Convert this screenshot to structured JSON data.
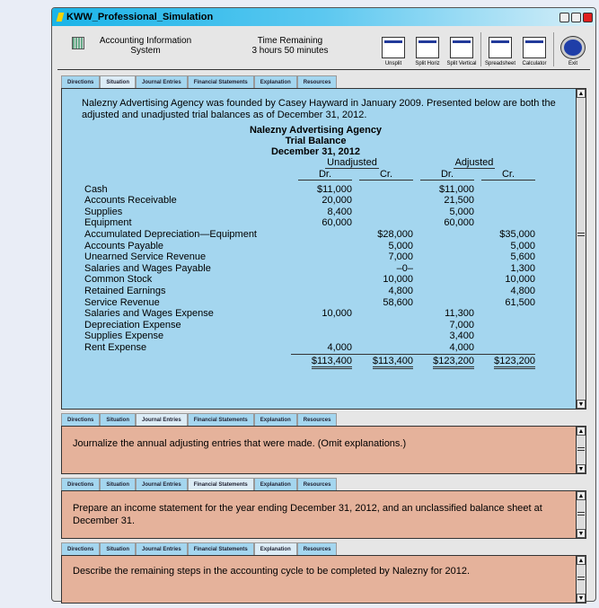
{
  "window": {
    "title": "KWW_Professional_Simulation"
  },
  "header": {
    "app_line1": "Accounting Information",
    "app_line2": "System",
    "time_label": "Time Remaining",
    "time_value": "3 hours 50 minutes"
  },
  "toolbar": [
    {
      "label": "Unsplit",
      "icon": "unsplit-icon"
    },
    {
      "label": "Split Horiz",
      "icon": "split-horizontal-icon"
    },
    {
      "label": "Split Vertical",
      "icon": "split-vertical-icon"
    },
    {
      "label": "Spreadsheet",
      "icon": "spreadsheet-icon"
    },
    {
      "label": "Calculator",
      "icon": "calculator-icon"
    },
    {
      "label": "Exit",
      "icon": "exit-arrow-icon"
    }
  ],
  "tabs": [
    "Directions",
    "Situation",
    "Journal Entries",
    "Financial Statements",
    "Explanation",
    "Resources"
  ],
  "panels": [
    {
      "active_tab": 1,
      "color": "#a4d6ef",
      "intro": "Nalezny Advertising Agency was founded by Casey Hayward in January 2009. Presented below are both the adjusted and unadjusted trial balances as of December 31, 2012.",
      "table": {
        "company": "Nalezny Advertising Agency",
        "title": "Trial Balance",
        "date": "December 31, 2012",
        "group1": "Unadjusted",
        "group2": "Adjusted",
        "dr": "Dr.",
        "cr": "Cr.",
        "rows": [
          [
            "Cash",
            "$11,000",
            "",
            "$11,000",
            ""
          ],
          [
            "Accounts Receivable",
            "20,000",
            "",
            "21,500",
            ""
          ],
          [
            "Supplies",
            "8,400",
            "",
            "5,000",
            ""
          ],
          [
            "Equipment",
            "60,000",
            "",
            "60,000",
            ""
          ],
          [
            "Accumulated Depreciation—Equipment",
            "",
            "$28,000",
            "",
            "$35,000"
          ],
          [
            "Accounts Payable",
            "",
            "5,000",
            "",
            "5,000"
          ],
          [
            "Unearned Service Revenue",
            "",
            "7,000",
            "",
            "5,600"
          ],
          [
            "Salaries and Wages Payable",
            "",
            "–0–",
            "",
            "1,300"
          ],
          [
            "Common Stock",
            "",
            "10,000",
            "",
            "10,000"
          ],
          [
            "Retained Earnings",
            "",
            "4,800",
            "",
            "4,800"
          ],
          [
            "Service Revenue",
            "",
            "58,600",
            "",
            "61,500"
          ],
          [
            "Salaries and Wages Expense",
            "10,000",
            "",
            "11,300",
            ""
          ],
          [
            "Depreciation Expense",
            "",
            "",
            "7,000",
            ""
          ],
          [
            "Supplies Expense",
            "",
            "",
            "3,400",
            ""
          ],
          [
            "Rent Expense",
            "4,000",
            "",
            "4,000",
            ""
          ]
        ],
        "totals": [
          "$113,400",
          "$113,400",
          "$123,200",
          "$123,200"
        ]
      }
    },
    {
      "active_tab": 2,
      "color": "#e5b29b",
      "text": "Journalize the annual adjusting entries that were made. (Omit explanations.)"
    },
    {
      "active_tab": 3,
      "color": "#e5b29b",
      "text": "Prepare an income statement for the year ending December 31, 2012, and an unclassified balance sheet at December 31."
    },
    {
      "active_tab": 4,
      "color": "#e5b29b",
      "text": "Describe the remaining steps in the accounting cycle to be completed by Nalezny for 2012."
    }
  ]
}
